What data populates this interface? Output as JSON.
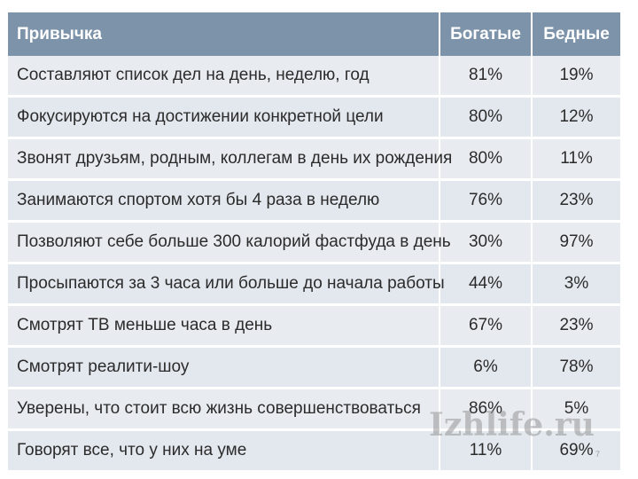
{
  "table": {
    "headers": {
      "habit": "Привычка",
      "rich": "Богатые",
      "poor": "Бедные"
    },
    "rows": [
      {
        "habit": "Составляют список дел на день, неделю, год",
        "rich": "81%",
        "poor": "19%"
      },
      {
        "habit": "Фокусируются на достижении конкретной цели",
        "rich": "80%",
        "poor": "12%"
      },
      {
        "habit": "Звонят друзьям, родным, коллегам в день их рождения",
        "rich": "80%",
        "poor": "11%"
      },
      {
        "habit": "Занимаются спортом хотя бы 4 раза в неделю",
        "rich": "76%",
        "poor": "23%"
      },
      {
        "habit": "Позволяют себе больше 300 калорий фастфуда в день",
        "rich": "30%",
        "poor": "97%"
      },
      {
        "habit": "Просыпаются за 3 часа или больше до начала работы",
        "rich": "44%",
        "poor": "3%"
      },
      {
        "habit": "Смотрят ТВ меньше часа в день",
        "rich": "67%",
        "poor": "23%"
      },
      {
        "habit": "Смотрят реалити-шоу",
        "rich": "6%",
        "poor": "78%"
      },
      {
        "habit": "Уверены, что стоит всю жизнь совершенствоваться",
        "rich": "86%",
        "poor": "5%"
      },
      {
        "habit": "Говорят все, что у них на уме",
        "rich": "11%",
        "poor": "69%"
      }
    ]
  },
  "watermark": "Izhlife.ru",
  "page_number": "7",
  "colors": {
    "header_bg": "#7d93aa",
    "row_bg": "#e8ecf1"
  }
}
